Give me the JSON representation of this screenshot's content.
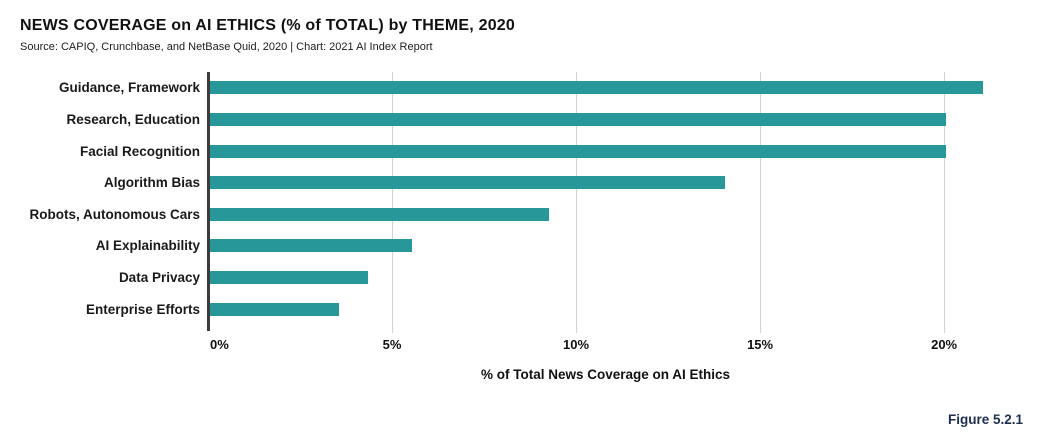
{
  "title": "NEWS COVERAGE on AI ETHICS (% of TOTAL) by THEME, 2020",
  "source_line": "Source: CAPIQ, Crunchbase, and NetBase Quid, 2020 | Chart: 2021 AI Index Report",
  "figure_label": "Figure 5.2.1",
  "colors": {
    "bar": "#28979A",
    "axis_line": "#3D3D3D",
    "gridline": "#D3D3D3",
    "text": "#111111",
    "figure_label_text": "#1D2D50"
  },
  "chart_data": {
    "type": "bar",
    "orientation": "horizontal",
    "title": "NEWS COVERAGE on AI ETHICS (% of TOTAL) by THEME, 2020",
    "subtitle": "Source: CAPIQ, Crunchbase, and NetBase Quid, 2020 | Chart: 2021 AI Index Report",
    "categories": [
      "Guidance, Framework",
      "Research, Education",
      "Facial Recognition",
      "Algorithm Bias",
      "Robots, Autonomous Cars",
      "AI Explainability",
      "Data Privacy",
      "Enterprise Efforts"
    ],
    "values": [
      21.0,
      20.0,
      20.0,
      14.0,
      9.2,
      5.5,
      4.3,
      3.5
    ],
    "xlabel": "% of Total News Coverage on AI Ethics",
    "ylabel": "",
    "xtick_values": [
      0,
      5,
      10,
      15,
      20
    ],
    "xtick_labels": [
      "0%",
      "5%",
      "10%",
      "15%",
      "20%"
    ],
    "xlim": [
      0,
      21.6
    ],
    "grid": "vertical-gridlines-behind-bars",
    "legend_position": "none"
  }
}
